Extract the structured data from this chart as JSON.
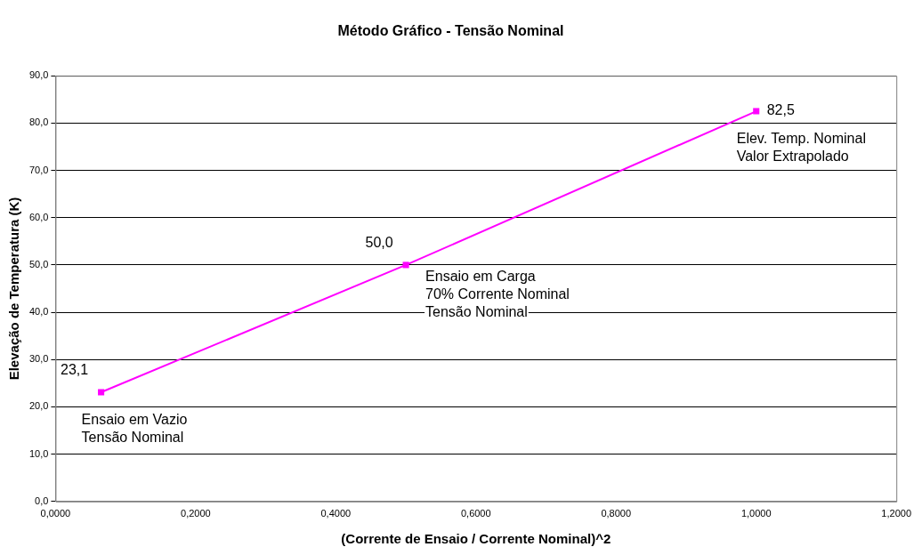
{
  "chart_data": {
    "type": "line",
    "title": "Método Gráfico - Tensão Nominal",
    "xlabel": "(Corrente de Ensaio / Corrente Nominal)^2",
    "ylabel": "Elevação de Temperatura (K)",
    "x": [
      0.065,
      0.5,
      1.0
    ],
    "series": [
      {
        "color": "#ff00ff",
        "values": [
          23.1,
          50.0,
          82.5
        ],
        "value_labels": [
          "23,1",
          "50,0",
          "82,5"
        ]
      }
    ],
    "xlim": [
      0,
      1.2
    ],
    "xticks": [
      {
        "value": 0,
        "label": "0,0000"
      },
      {
        "value": 0.2,
        "label": "0,2000"
      },
      {
        "value": 0.4,
        "label": "0,4000"
      },
      {
        "value": 0.6,
        "label": "0,6000"
      },
      {
        "value": 0.8,
        "label": "0,8000"
      },
      {
        "value": 1.0,
        "label": "1,0000"
      },
      {
        "value": 1.2,
        "label": "1,2000"
      }
    ],
    "ylim": [
      0,
      90
    ],
    "yticks": [
      {
        "value": 0,
        "label": "0,0"
      },
      {
        "value": 10,
        "label": "10,0"
      },
      {
        "value": 20,
        "label": "20,0"
      },
      {
        "value": 30,
        "label": "30,0"
      },
      {
        "value": 40,
        "label": "40,0"
      },
      {
        "value": 50,
        "label": "50,0"
      },
      {
        "value": 60,
        "label": "60,0"
      },
      {
        "value": 70,
        "label": "70,0"
      },
      {
        "value": 80,
        "label": "80,0"
      },
      {
        "value": 90,
        "label": "90,0"
      }
    ],
    "grid": "y",
    "legend": false,
    "marker": "square",
    "line_style": "solid",
    "annotations": [
      {
        "text": "Ensaio em Vazio\nTensão Nominal",
        "x": 0.065,
        "y": 23.1
      },
      {
        "text": "Ensaio em Carga\n70% Corrente Nominal\nTensão Nominal",
        "x": 0.5,
        "y": 50.0
      },
      {
        "text": "Elev. Temp. Nominal\nValor Extrapolado",
        "x": 1.0,
        "y": 82.5
      }
    ]
  }
}
